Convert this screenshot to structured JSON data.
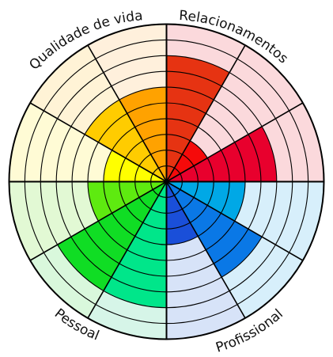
{
  "chart_data": {
    "type": "radial-bar",
    "title": "",
    "rings": 10,
    "axis_range": [
      0,
      10
    ],
    "grid": true,
    "quadrants": [
      {
        "label": "Relacionamentos",
        "slices": [
          {
            "value": 8,
            "color": "#e63312",
            "bg": "#fbd9dc"
          },
          {
            "value": 3,
            "color": "#f50a0a",
            "bg": "#fbd9dc"
          },
          {
            "value": 7,
            "color": "#e8002d",
            "bg": "#fbd9dc"
          }
        ]
      },
      {
        "label": "Profissional",
        "slices": [
          {
            "value": 5,
            "color": "#00a8e6",
            "bg": "#d7effb"
          },
          {
            "value": 7,
            "color": "#0a78e6",
            "bg": "#d7effb"
          },
          {
            "value": 4,
            "color": "#1a4fd9",
            "bg": "#d7e3f8"
          }
        ]
      },
      {
        "label": "Pessoal",
        "slices": [
          {
            "value": 8,
            "color": "#00e68a",
            "bg": "#d6f5e8"
          },
          {
            "value": 8,
            "color": "#10dd24",
            "bg": "#d9f8dc"
          },
          {
            "value": 5,
            "color": "#5eea10",
            "bg": "#e2f9d4"
          }
        ]
      },
      {
        "label": "Qualidade de vida",
        "slices": [
          {
            "value": 4,
            "color": "#ffff00",
            "bg": "#fffbd5"
          },
          {
            "value": 6,
            "color": "#ffcc00",
            "bg": "#fff3d6"
          },
          {
            "value": 6,
            "color": "#ffa200",
            "bg": "#fff0dc"
          }
        ]
      }
    ]
  }
}
